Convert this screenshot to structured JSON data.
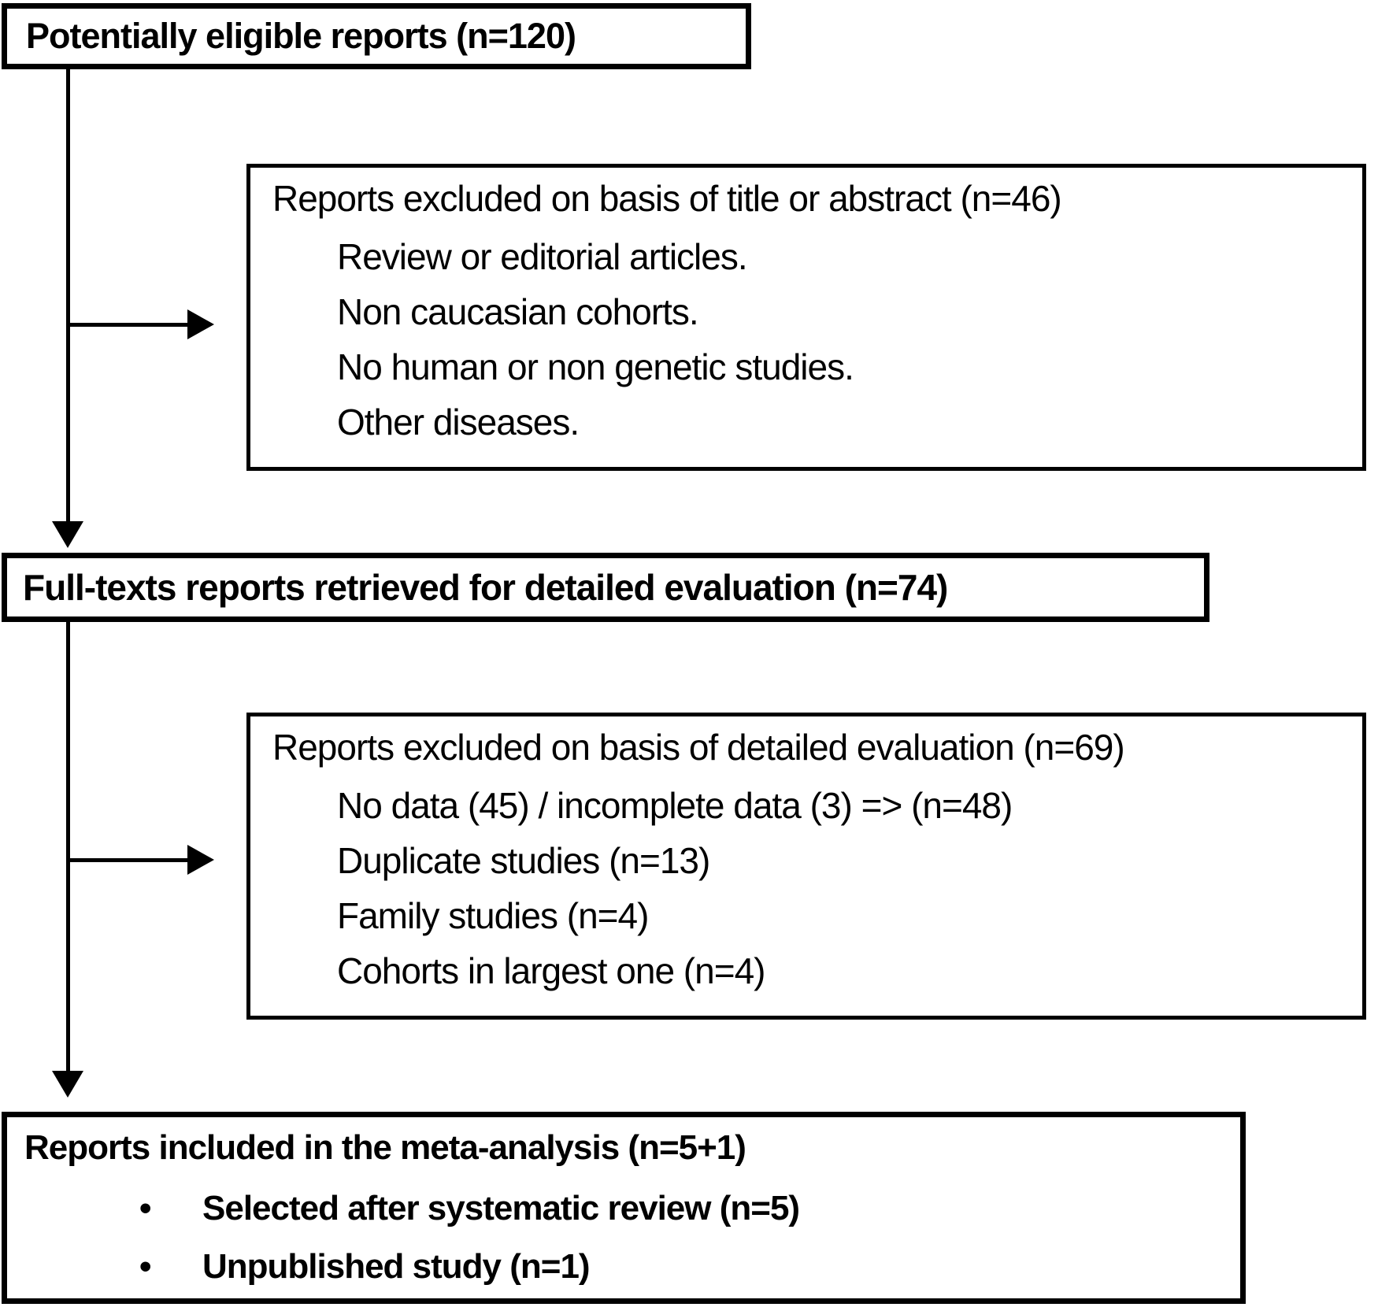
{
  "diagram": {
    "boxes": {
      "eligible": {
        "label": "Potentially eligible reports (n=120)"
      },
      "excluded_title_abstract": {
        "title": "Reports excluded on basis of title or abstract (n=46)",
        "items": [
          "Review or editorial articles.",
          "Non caucasian cohorts.",
          "No human or non genetic studies.",
          "Other diseases."
        ]
      },
      "fulltext": {
        "label": "Full-texts reports retrieved for detailed evaluation (n=74)"
      },
      "excluded_detailed": {
        "title": "Reports excluded on basis of detailed evaluation (n=69)",
        "items": [
          "No data (45) / incomplete data (3) => (n=48)",
          "Duplicate studies (n=13)",
          "Family studies (n=4)",
          "Cohorts in largest one (n=4)"
        ]
      },
      "included": {
        "label": "Reports included in the meta-analysis (n=5+1)",
        "bullet_char": "•",
        "bullets": [
          "Selected after systematic review (n=5)",
          "Unpublished study (n=1)"
        ]
      }
    },
    "colors": {
      "line": "#000000",
      "text": "#000000",
      "background": "#ffffff"
    }
  }
}
